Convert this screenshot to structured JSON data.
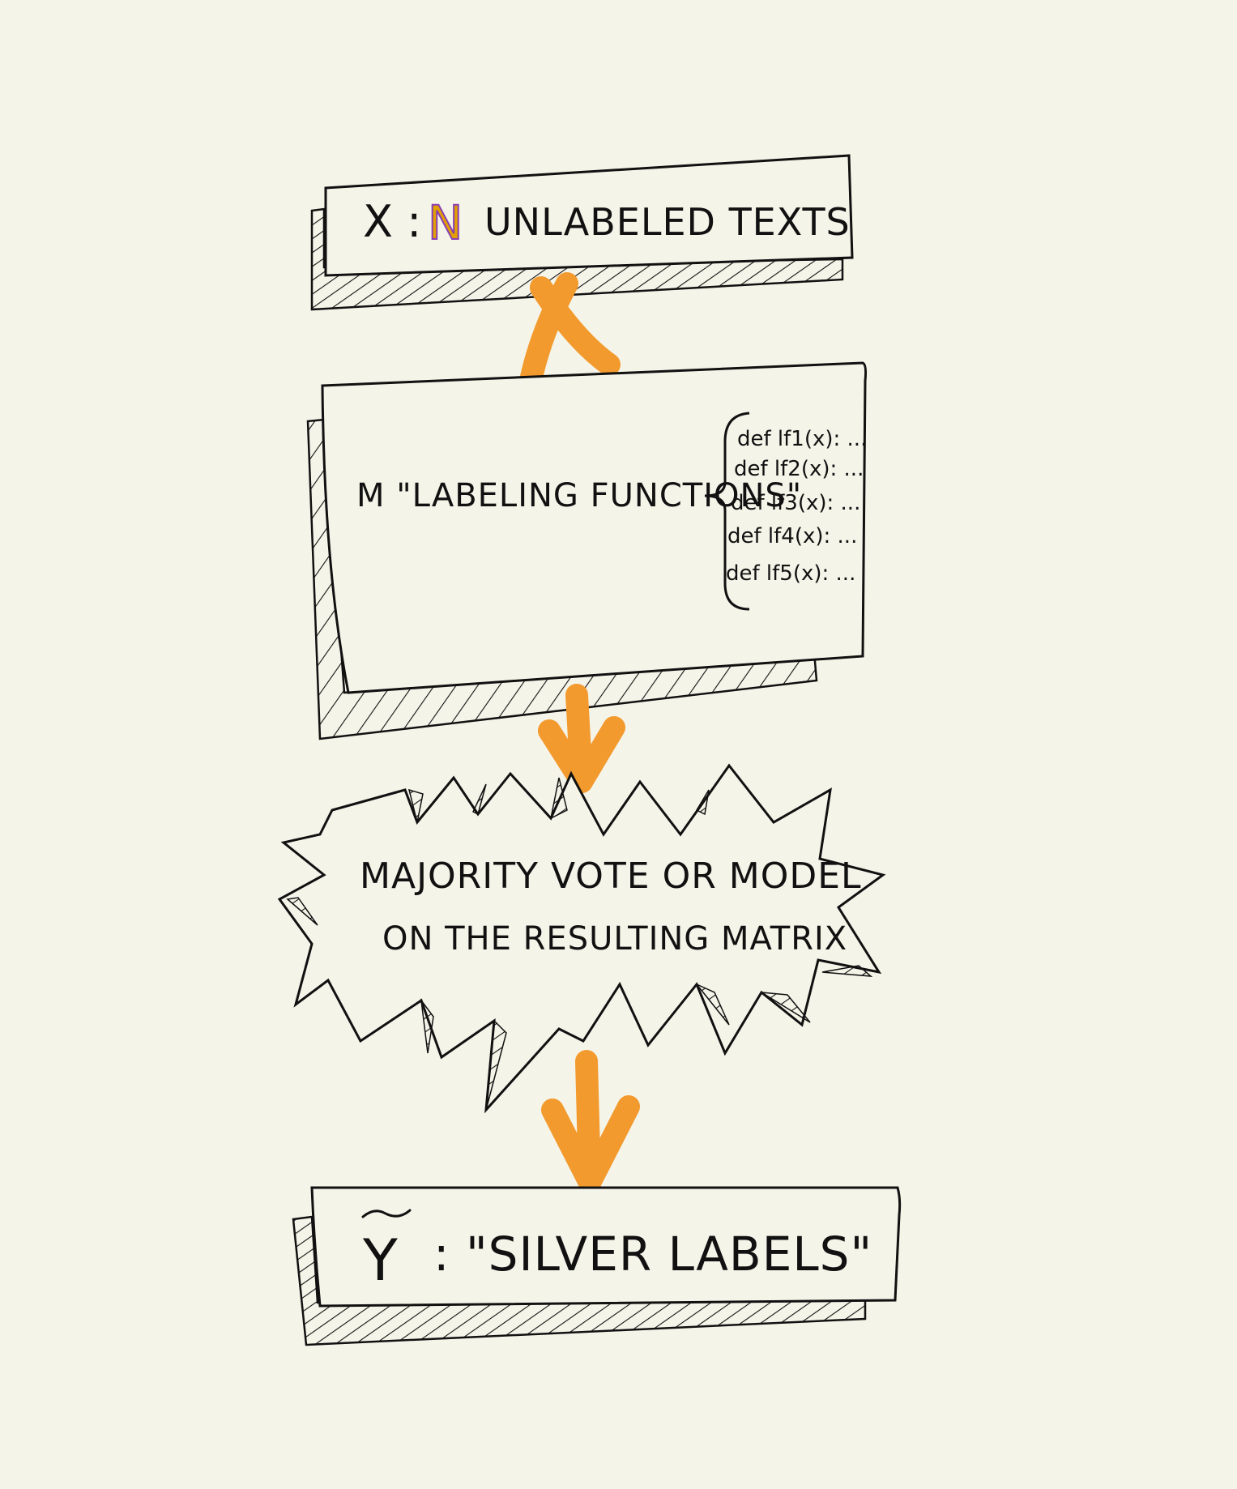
{
  "colors": {
    "background": "#f5f4e9",
    "ink": "#111111",
    "accent": "#f29a2e",
    "n_highlight": [
      "#e1a000",
      "#8a3fb0",
      "#2f6fd6"
    ]
  },
  "box1": {
    "prefix": "X :",
    "n_symbol": "N",
    "label": "UNLABELED  TEXTS"
  },
  "connector1": {
    "symbol": "x-multiply-icon"
  },
  "box2": {
    "label": "M  \"LABELING  FUNCTIONS\"",
    "functions": [
      "def lf1(x): ...",
      "def lf2(x): ...",
      "def lf3(x): ...",
      "def lf4(x): ...",
      "def lf5(x): ..."
    ]
  },
  "burst": {
    "line1": "MAJORITY  VOTE   OR  MODEL",
    "line2": "ON  THE  RESULTING  MATRIX"
  },
  "box3": {
    "symbol": "Y",
    "label": ":  \"SILVER  LABELS\""
  }
}
